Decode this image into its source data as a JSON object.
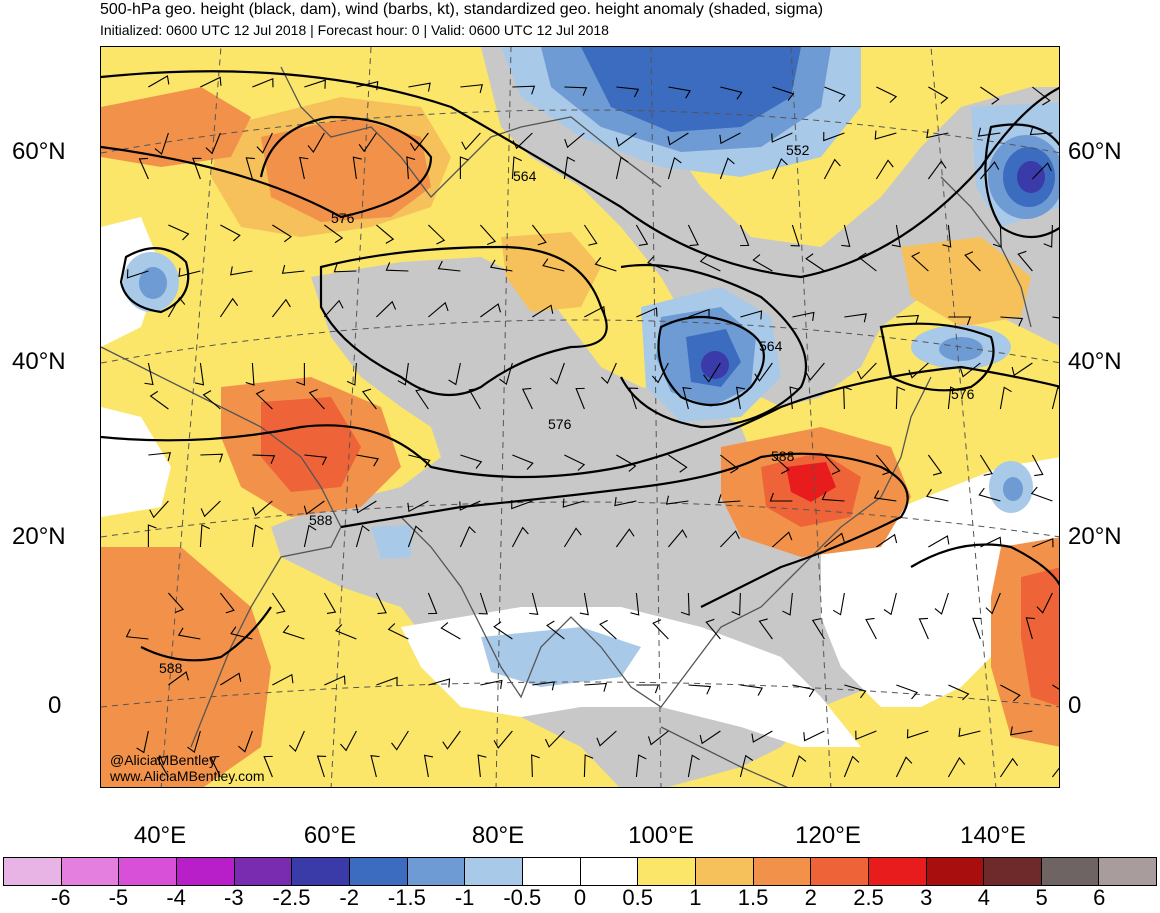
{
  "header": {
    "title": "500-hPa geo. height (black, dam), wind (barbs, kt), standardized geo. height anomaly (shaded, sigma)",
    "subtitle": "Initialized: 0600 UTC 12 Jul 2018 | Forecast hour: 0 | Valid: 0600 UTC 12 Jul 2018"
  },
  "map": {
    "lat_labels": [
      "60°N",
      "40°N",
      "20°N",
      "0"
    ],
    "lon_labels": [
      "40°E",
      "60°E",
      "80°E",
      "100°E",
      "120°E",
      "140°E"
    ],
    "contour_labels": [
      "564",
      "576",
      "552",
      "564",
      "576",
      "576",
      "588",
      "588",
      "588"
    ],
    "credit": [
      "@AliciaMBentley",
      "www.AliciaMBentley.com"
    ]
  },
  "colorbar": {
    "labels": [
      "-6",
      "-5",
      "-4",
      "-3",
      "-2.5",
      "-2",
      "-1.5",
      "-1",
      "-0.5",
      "0",
      "0.5",
      "1",
      "1.5",
      "2",
      "2.5",
      "3",
      "4",
      "5",
      "6"
    ],
    "colors": [
      "#e8b4e6",
      "#e47fe0",
      "#d84fd8",
      "#b81fc8",
      "#7a2cb0",
      "#3a3aa8",
      "#3b6cc0",
      "#6e9bd4",
      "#a9c9e8",
      "#ffffff",
      "#ffffff",
      "#fbe66a",
      "#f6c15a",
      "#f2924a",
      "#ee6438",
      "#e81c1c",
      "#a80e0e",
      "#6e2a2a",
      "#6e6464",
      "#a89c9c"
    ]
  }
}
